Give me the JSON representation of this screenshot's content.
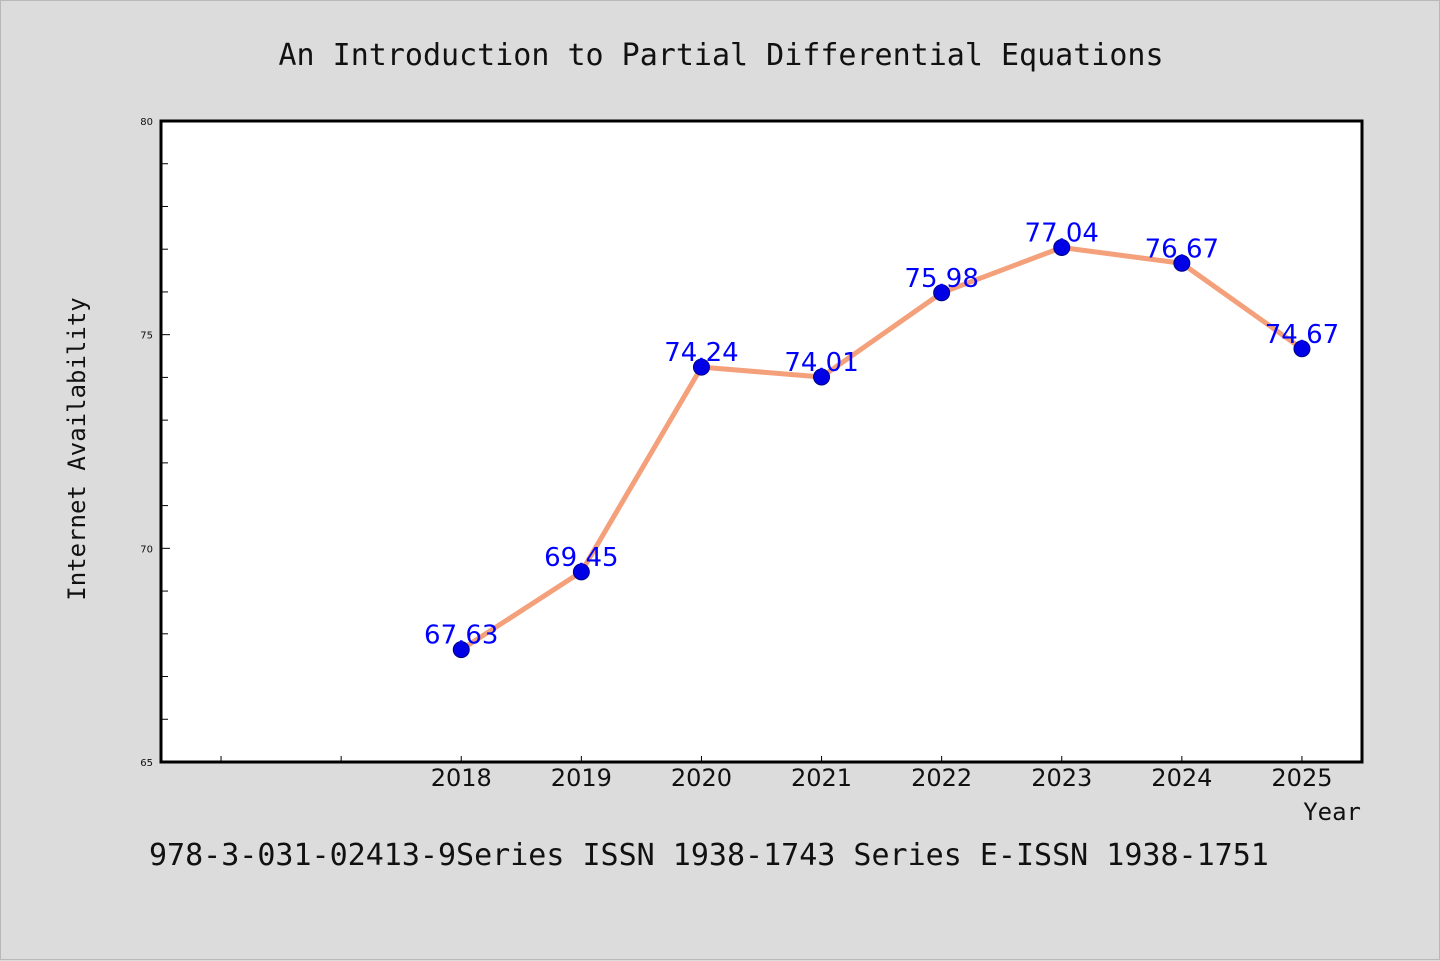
{
  "chart_data": {
    "type": "line",
    "title": "An Introduction to Partial Differential Equations",
    "footer": "978-3-031-02413-9Series ISSN 1938-1743 Series E-ISSN 1938-1751",
    "xlabel": "Year",
    "ylabel": "Internet Availability",
    "x": [
      "2018",
      "2019",
      "2020",
      "2021",
      "2022",
      "2023",
      "2024",
      "2025"
    ],
    "x_range": [
      2015.5,
      2025.5
    ],
    "series": [
      {
        "values": [
          67.63,
          69.45,
          74.24,
          74.01,
          75.98,
          77.04,
          76.67,
          74.67
        ],
        "data_labels": [
          "67.63",
          "69.45",
          "74.24",
          "74.01",
          "75.98",
          "77.04",
          "76.67",
          "74.67"
        ]
      }
    ],
    "ylim": [
      65,
      80
    ],
    "yticks": [
      65,
      70,
      75,
      80
    ],
    "ytick_labels": [
      "65",
      "70",
      "75",
      "80"
    ],
    "grid": false,
    "colors": {
      "background": "#dcdcdc",
      "plot_background": "#ffffff",
      "line": "#f4a07a",
      "marker": "#0000e6",
      "marker_edge": "#000080",
      "data_label": "#0000ff"
    }
  }
}
